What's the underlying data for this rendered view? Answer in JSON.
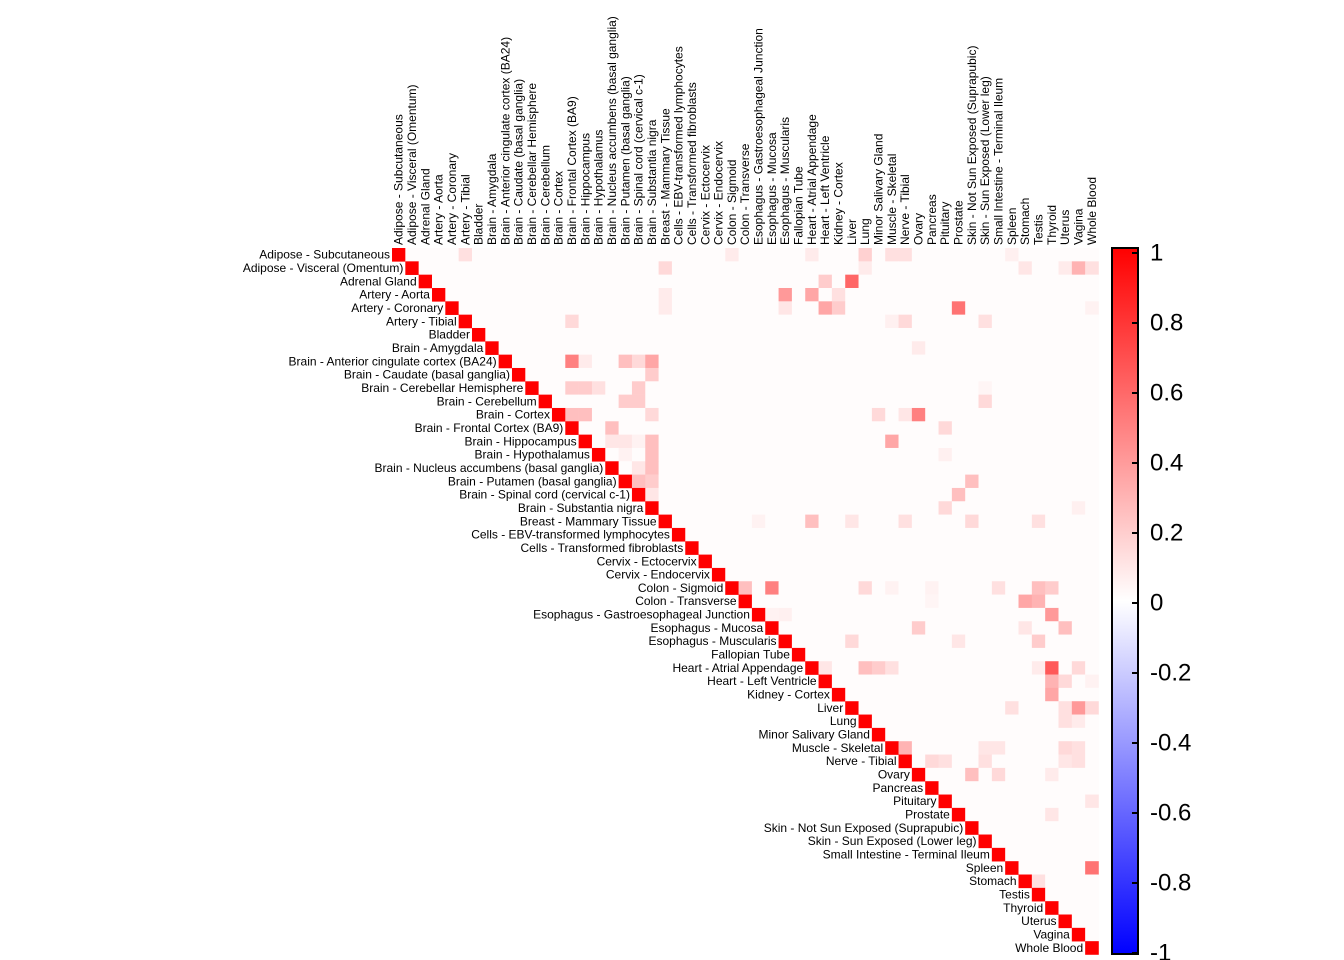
{
  "chart_data": {
    "type": "heatmap",
    "layout": "upper-triangular correlation matrix",
    "labels": [
      "Adipose - Subcutaneous",
      "Adipose - Visceral (Omentum)",
      "Adrenal Gland",
      "Artery - Aorta",
      "Artery - Coronary",
      "Artery - Tibial",
      "Bladder",
      "Brain - Amygdala",
      "Brain - Anterior cingulate cortex (BA24)",
      "Brain - Caudate (basal ganglia)",
      "Brain - Cerebellar Hemisphere",
      "Brain - Cerebellum",
      "Brain - Cortex",
      "Brain - Frontal Cortex (BA9)",
      "Brain - Hippocampus",
      "Brain - Hypothalamus",
      "Brain - Nucleus accumbens (basal ganglia)",
      "Brain - Putamen (basal ganglia)",
      "Brain - Spinal cord (cervical c-1)",
      "Brain - Substantia nigra",
      "Breast - Mammary Tissue",
      "Cells - EBV-transformed lymphocytes",
      "Cells - Transformed fibroblasts",
      "Cervix - Ectocervix",
      "Cervix - Endocervix",
      "Colon - Sigmoid",
      "Colon - Transverse",
      "Esophagus - Gastroesophageal Junction",
      "Esophagus - Mucosa",
      "Esophagus - Muscularis",
      "Fallopian Tube",
      "Heart - Atrial Appendage",
      "Heart - Left Ventricle",
      "Kidney - Cortex",
      "Liver",
      "Lung",
      "Minor Salivary Gland",
      "Muscle - Skeletal",
      "Nerve - Tibial",
      "Ovary",
      "Pancreas",
      "Pituitary",
      "Prostate",
      "Skin - Not Sun Exposed (Suprapubic)",
      "Skin - Sun Exposed (Lower leg)",
      "Small Intestine - Terminal Ileum",
      "Spleen",
      "Stomach",
      "Testis",
      "Thyroid",
      "Uterus",
      "Vagina",
      "Whole Blood"
    ],
    "diagonal_value": 1,
    "background_value": 0.01,
    "cells": [
      [
        0,
        5,
        0.12
      ],
      [
        0,
        25,
        0.08
      ],
      [
        0,
        31,
        0.08
      ],
      [
        0,
        35,
        0.18
      ],
      [
        0,
        37,
        0.12
      ],
      [
        0,
        38,
        0.12
      ],
      [
        0,
        46,
        0.06
      ],
      [
        1,
        20,
        0.15
      ],
      [
        1,
        35,
        0.08
      ],
      [
        1,
        47,
        0.1
      ],
      [
        1,
        50,
        0.08
      ],
      [
        1,
        51,
        0.3
      ],
      [
        1,
        52,
        0.12
      ],
      [
        2,
        32,
        0.2
      ],
      [
        2,
        34,
        0.6
      ],
      [
        3,
        20,
        0.08
      ],
      [
        3,
        29,
        0.4
      ],
      [
        3,
        31,
        0.35
      ],
      [
        3,
        33,
        0.12
      ],
      [
        4,
        20,
        0.08
      ],
      [
        4,
        29,
        0.1
      ],
      [
        4,
        32,
        0.35
      ],
      [
        4,
        33,
        0.2
      ],
      [
        4,
        42,
        0.55
      ],
      [
        4,
        52,
        0.05
      ],
      [
        5,
        13,
        0.15
      ],
      [
        5,
        37,
        0.06
      ],
      [
        5,
        38,
        0.15
      ],
      [
        5,
        44,
        0.12
      ],
      [
        7,
        39,
        0.08
      ],
      [
        8,
        13,
        0.5
      ],
      [
        8,
        14,
        0.08
      ],
      [
        8,
        17,
        0.25
      ],
      [
        8,
        18,
        0.15
      ],
      [
        8,
        19,
        0.35
      ],
      [
        9,
        19,
        0.2
      ],
      [
        10,
        13,
        0.2
      ],
      [
        10,
        14,
        0.2
      ],
      [
        10,
        15,
        0.12
      ],
      [
        10,
        18,
        0.2
      ],
      [
        10,
        44,
        0.04
      ],
      [
        11,
        17,
        0.2
      ],
      [
        11,
        18,
        0.2
      ],
      [
        11,
        44,
        0.15
      ],
      [
        12,
        13,
        0.25
      ],
      [
        12,
        14,
        0.25
      ],
      [
        12,
        19,
        0.15
      ],
      [
        12,
        36,
        0.15
      ],
      [
        12,
        38,
        0.1
      ],
      [
        12,
        39,
        0.5
      ],
      [
        13,
        16,
        0.25
      ],
      [
        13,
        41,
        0.15
      ],
      [
        14,
        16,
        0.1
      ],
      [
        14,
        17,
        0.1
      ],
      [
        14,
        18,
        0.05
      ],
      [
        14,
        19,
        0.25
      ],
      [
        14,
        37,
        0.35
      ],
      [
        15,
        17,
        0.05
      ],
      [
        15,
        19,
        0.25
      ],
      [
        15,
        41,
        0.06
      ],
      [
        16,
        18,
        0.1
      ],
      [
        16,
        19,
        0.25
      ],
      [
        17,
        18,
        0.25
      ],
      [
        17,
        19,
        0.2
      ],
      [
        17,
        43,
        0.25
      ],
      [
        18,
        19,
        0.1
      ],
      [
        18,
        42,
        0.25
      ],
      [
        19,
        41,
        0.15
      ],
      [
        19,
        51,
        0.06
      ],
      [
        20,
        27,
        0.05
      ],
      [
        20,
        31,
        0.25
      ],
      [
        20,
        34,
        0.1
      ],
      [
        20,
        38,
        0.12
      ],
      [
        20,
        43,
        0.15
      ],
      [
        20,
        48,
        0.12
      ],
      [
        25,
        26,
        0.25
      ],
      [
        25,
        28,
        0.5
      ],
      [
        25,
        35,
        0.15
      ],
      [
        25,
        37,
        0.05
      ],
      [
        25,
        40,
        0.05
      ],
      [
        25,
        45,
        0.12
      ],
      [
        25,
        48,
        0.25
      ],
      [
        25,
        49,
        0.2
      ],
      [
        26,
        40,
        0.04
      ],
      [
        26,
        47,
        0.35
      ],
      [
        26,
        48,
        0.3
      ],
      [
        27,
        28,
        0.05
      ],
      [
        27,
        29,
        0.06
      ],
      [
        27,
        49,
        0.4
      ],
      [
        28,
        39,
        0.2
      ],
      [
        28,
        47,
        0.1
      ],
      [
        28,
        50,
        0.25
      ],
      [
        29,
        34,
        0.15
      ],
      [
        29,
        42,
        0.1
      ],
      [
        29,
        48,
        0.2
      ],
      [
        31,
        32,
        0.1
      ],
      [
        31,
        35,
        0.25
      ],
      [
        31,
        36,
        0.2
      ],
      [
        31,
        37,
        0.12
      ],
      [
        31,
        48,
        0.08
      ],
      [
        31,
        49,
        0.65
      ],
      [
        31,
        51,
        0.15
      ],
      [
        32,
        49,
        0.3
      ],
      [
        32,
        50,
        0.15
      ],
      [
        32,
        52,
        0.05
      ],
      [
        33,
        49,
        0.35
      ],
      [
        34,
        46,
        0.12
      ],
      [
        34,
        50,
        0.12
      ],
      [
        34,
        51,
        0.4
      ],
      [
        34,
        52,
        0.15
      ],
      [
        35,
        50,
        0.12
      ],
      [
        35,
        51,
        0.08
      ],
      [
        37,
        38,
        0.3
      ],
      [
        37,
        44,
        0.1
      ],
      [
        37,
        45,
        0.1
      ],
      [
        37,
        50,
        0.15
      ],
      [
        37,
        51,
        0.12
      ],
      [
        38,
        40,
        0.15
      ],
      [
        38,
        41,
        0.12
      ],
      [
        38,
        44,
        0.12
      ],
      [
        38,
        50,
        0.1
      ],
      [
        38,
        51,
        0.12
      ],
      [
        39,
        43,
        0.25
      ],
      [
        39,
        45,
        0.15
      ],
      [
        39,
        49,
        0.08
      ],
      [
        41,
        52,
        0.1
      ],
      [
        42,
        49,
        0.1
      ],
      [
        46,
        52,
        0.55
      ],
      [
        47,
        48,
        0.12
      ]
    ],
    "colorscale": {
      "low": "#0000ff",
      "mid": "#ffffff",
      "high": "#ff0000",
      "min": -1,
      "max": 1
    },
    "colorbar_ticks": [
      "1",
      "0.8",
      "0.6",
      "0.4",
      "0.2",
      "0",
      "-0.2",
      "-0.4",
      "-0.6",
      "-0.8",
      "-1"
    ],
    "grid": false
  }
}
